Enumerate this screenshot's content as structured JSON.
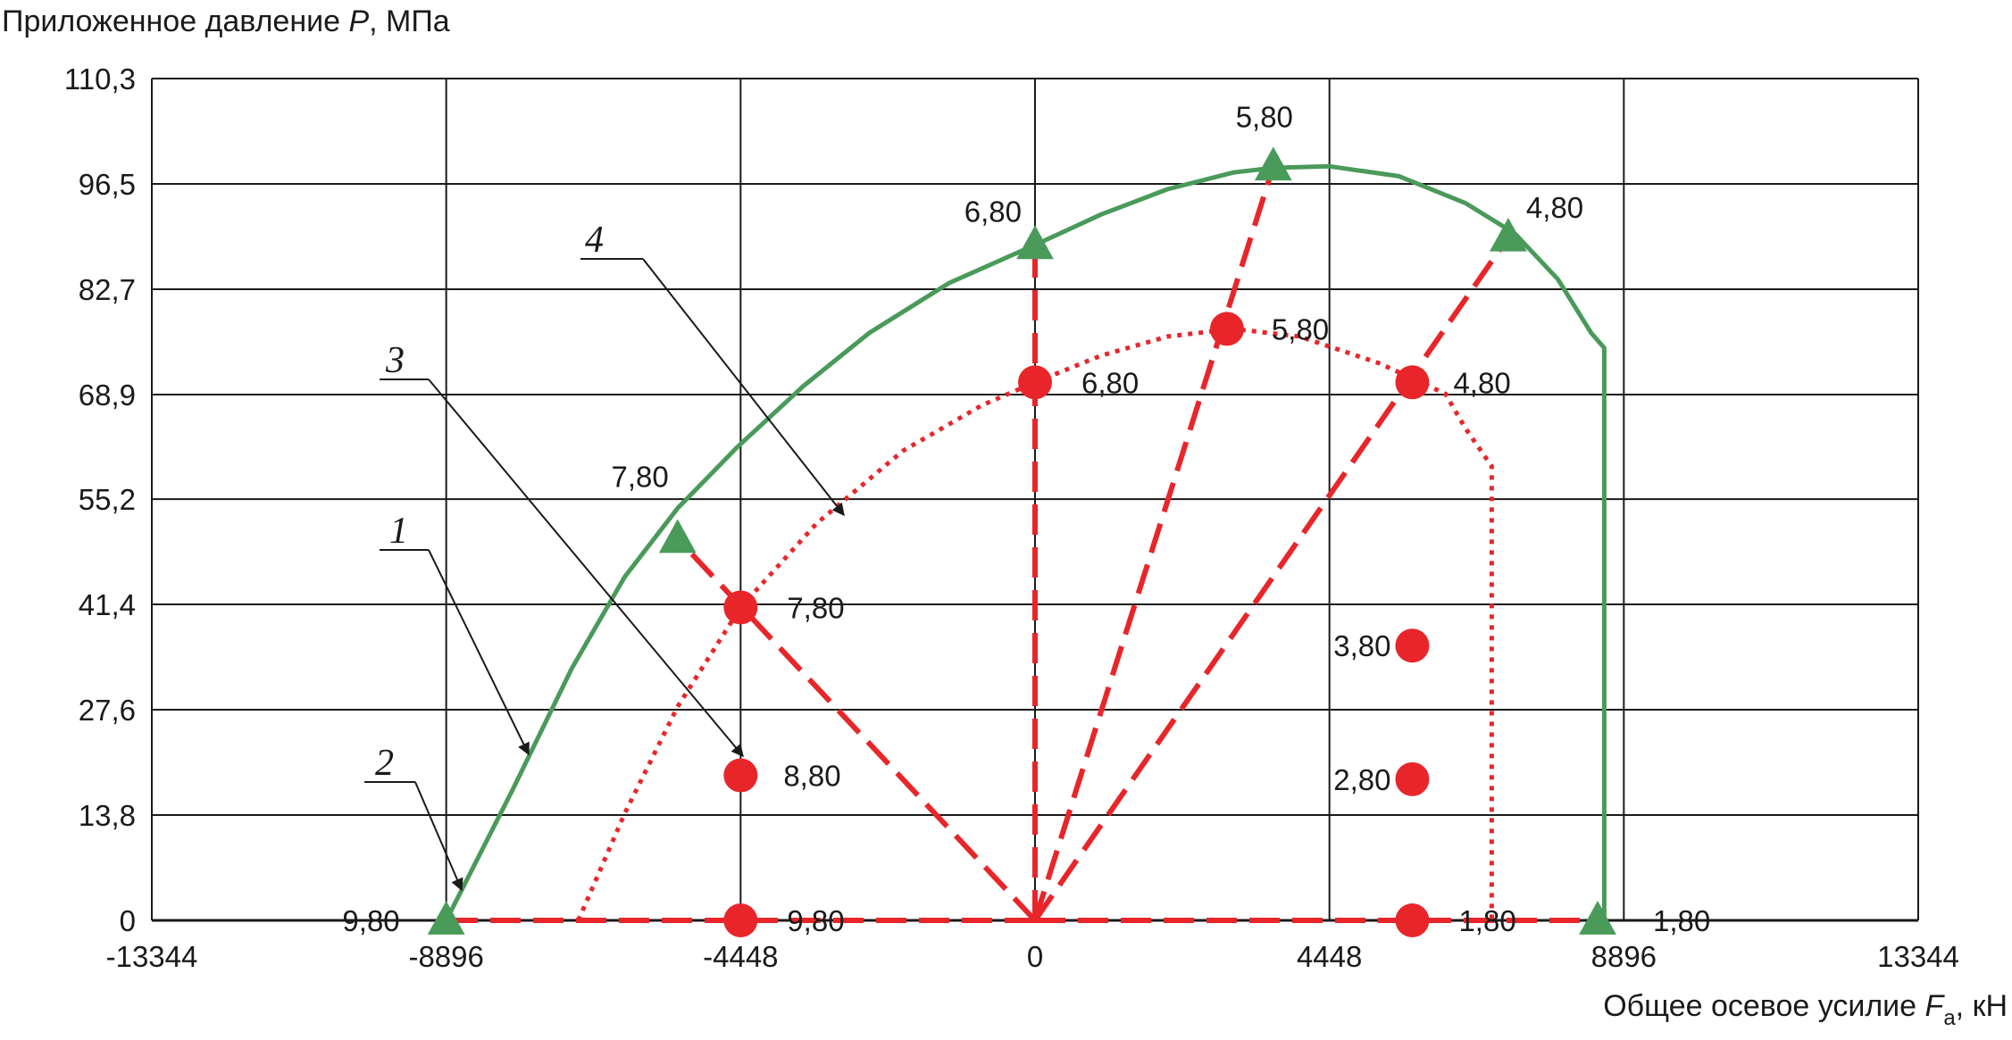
{
  "chart_data": {
    "type": "line",
    "ylabel_text": "Приложенное давление ",
    "ylabel_var": "P",
    "ylabel_unit": ", МПа",
    "xlabel_text": "Общее осевое усилие ",
    "xlabel_var": "F",
    "xlabel_sub": "a",
    "xlabel_unit": ", кН",
    "xlim": [
      -13344,
      13344
    ],
    "ylim": [
      0,
      110.3
    ],
    "x_ticks": [
      -13344,
      -8896,
      -4448,
      0,
      4448,
      8896,
      13344
    ],
    "x_tick_labels": [
      "-13344",
      "-8896",
      "-4448",
      "0",
      "4448",
      "8896",
      "13344"
    ],
    "y_ticks": [
      0,
      13.8,
      27.6,
      41.4,
      55.2,
      68.9,
      82.7,
      96.5,
      110.3
    ],
    "y_tick_labels": [
      "0",
      "13,8",
      "27,6",
      "41,4",
      "55,2",
      "68,9",
      "82,7",
      "96,5",
      "110,3"
    ],
    "grid": true,
    "callouts": [
      "1",
      "2",
      "3",
      "4"
    ],
    "series": [
      {
        "key": "envelope_outer",
        "color": "#4a9a5a",
        "style": "solid",
        "marker": "triangle",
        "curve": [
          [
            -8896,
            0
          ],
          [
            -7900,
            17
          ],
          [
            -7000,
            33
          ],
          [
            -6200,
            45
          ],
          [
            -5400,
            54
          ],
          [
            -4500,
            62
          ],
          [
            -3500,
            70
          ],
          [
            -2500,
            77
          ],
          [
            -1300,
            83.5
          ],
          [
            0,
            88.5
          ],
          [
            1000,
            92.5
          ],
          [
            2000,
            95.8
          ],
          [
            3000,
            98
          ],
          [
            3600,
            98.6
          ],
          [
            4448,
            98.8
          ],
          [
            5500,
            97.5
          ],
          [
            6500,
            94
          ],
          [
            7250,
            90
          ],
          [
            7900,
            84
          ],
          [
            8400,
            77
          ],
          [
            8600,
            75
          ],
          [
            8600,
            70
          ],
          [
            8600,
            0
          ]
        ],
        "points": [
          {
            "x": -8896,
            "y": 0,
            "label": "9,80"
          },
          {
            "x": -5400,
            "y": 50,
            "label": "7,80"
          },
          {
            "x": 0,
            "y": 88.5,
            "label": "6,80"
          },
          {
            "x": 3600,
            "y": 98.8,
            "label": "5,80"
          },
          {
            "x": 7150,
            "y": 89.5,
            "label": "4,80"
          },
          {
            "x": 8500,
            "y": 0,
            "label": "1,80"
          }
        ]
      },
      {
        "key": "envelope_inner",
        "color": "#e8262a",
        "style": "dotted",
        "marker": "circle",
        "curve": [
          [
            -6900,
            0
          ],
          [
            -6200,
            14
          ],
          [
            -5400,
            28
          ],
          [
            -4448,
            41
          ],
          [
            -3300,
            52
          ],
          [
            -2000,
            61.5
          ],
          [
            -800,
            67.5
          ],
          [
            0,
            70.5
          ],
          [
            1000,
            74
          ],
          [
            2000,
            76.5
          ],
          [
            3000,
            77.5
          ],
          [
            4000,
            76.5
          ],
          [
            5200,
            73
          ],
          [
            5700,
            71
          ],
          [
            6200,
            69
          ],
          [
            6500,
            64.5
          ],
          [
            6900,
            59.5
          ],
          [
            6900,
            0
          ]
        ],
        "points": [
          {
            "x": -4448,
            "y": 41,
            "label": "7,80"
          },
          {
            "x": 0,
            "y": 70.5,
            "label": "6,80"
          },
          {
            "x": 2900,
            "y": 77.5,
            "label": "5,80"
          },
          {
            "x": 5700,
            "y": 70.5,
            "label": "4,80"
          }
        ]
      },
      {
        "key": "static_points",
        "color": "#e8262a",
        "style": "none",
        "marker": "circle",
        "points": [
          {
            "x": -4448,
            "y": 19,
            "label": "8,80"
          },
          {
            "x": -4448,
            "y": 0,
            "label": "9,80"
          },
          {
            "x": 5700,
            "y": 36,
            "label": "3,80"
          },
          {
            "x": 5700,
            "y": 18.5,
            "label": "2,80"
          },
          {
            "x": 5700,
            "y": 0,
            "label": "1,80"
          }
        ]
      }
    ],
    "dashed_rays": {
      "color": "#e8262a",
      "origin": [
        0,
        0
      ],
      "targets": [
        [
          -8896,
          0
        ],
        [
          -5400,
          50
        ],
        [
          0,
          88.5
        ],
        [
          3600,
          98.8
        ],
        [
          7150,
          89.5
        ],
        [
          8500,
          0
        ]
      ]
    }
  }
}
